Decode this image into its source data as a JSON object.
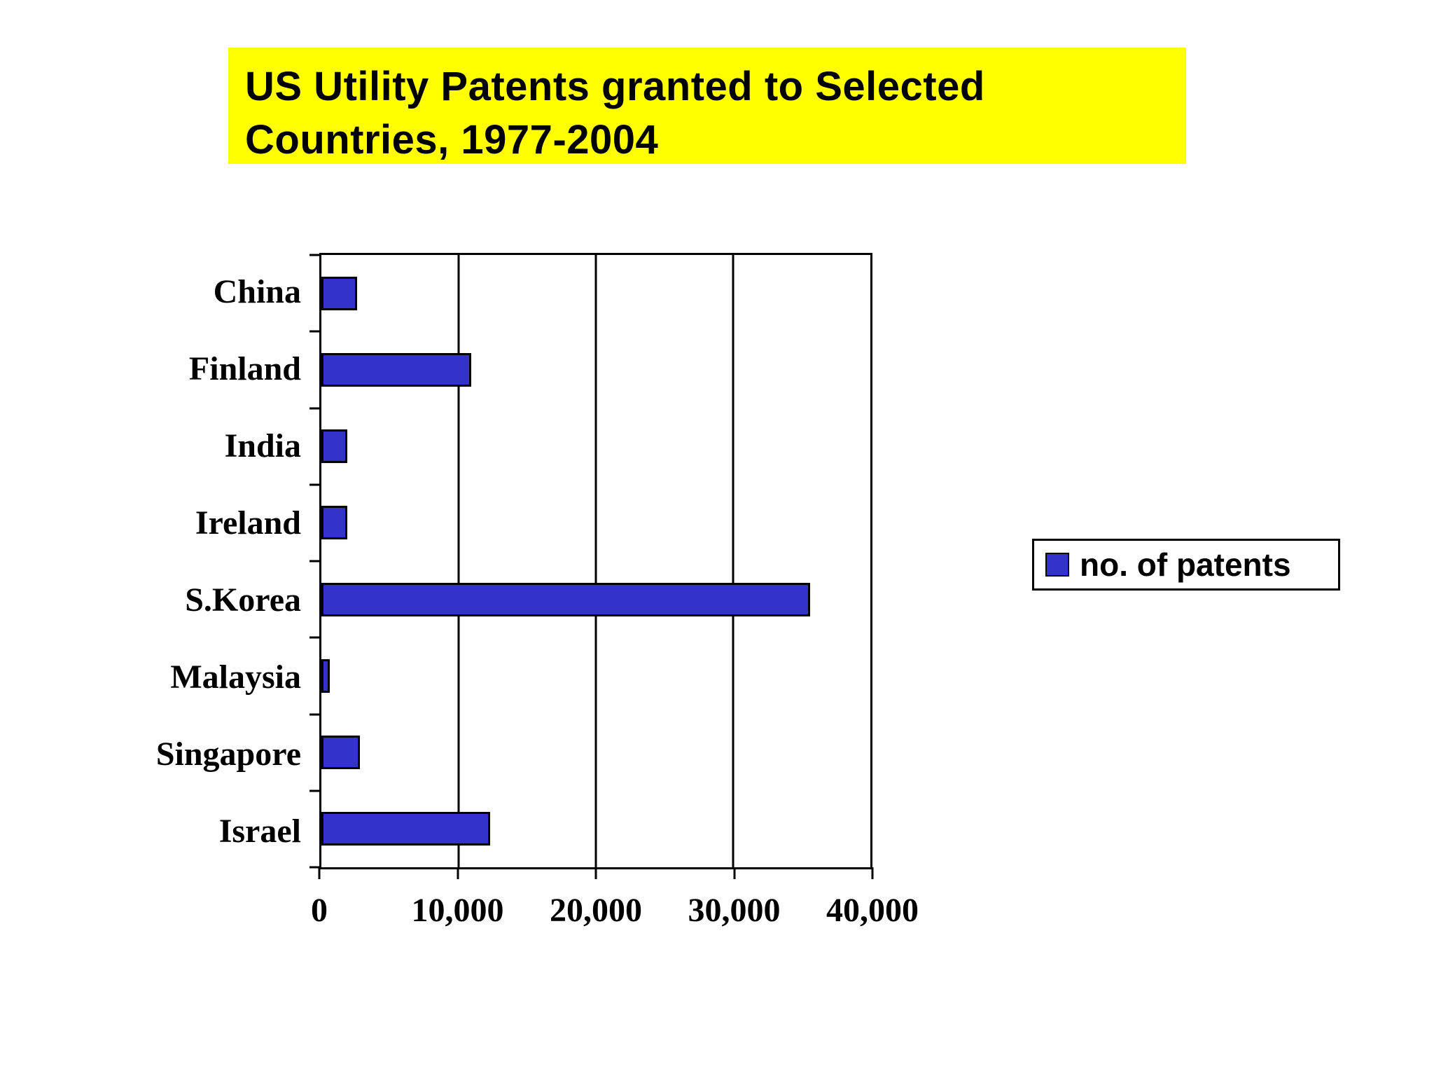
{
  "title": {
    "line1": "US Utility Patents granted to Selected",
    "line2": "Countries, 1977-2004"
  },
  "legend": {
    "label": "no. of patents"
  },
  "colors": {
    "bar_fill": "#3333CC",
    "bar_border": "#000000",
    "title_bg": "#FFFF00",
    "axis": "#000000",
    "background": "#FFFFFF"
  },
  "chart_data": {
    "type": "bar",
    "orientation": "horizontal",
    "title": "US Utility Patents granted to Selected Countries, 1977-2004",
    "categories": [
      "China",
      "Finland",
      "India",
      "Ireland",
      "S.Korea",
      "Malaysia",
      "Singapore",
      "Israel"
    ],
    "series": [
      {
        "name": "no. of patents",
        "values": [
          2600,
          10900,
          1900,
          1900,
          35600,
          600,
          2800,
          12300
        ]
      }
    ],
    "xlabel": "",
    "ylabel": "",
    "xlim": [
      0,
      40000
    ],
    "x_ticks": [
      "0",
      "10,000",
      "20,000",
      "30,000",
      "40,000"
    ],
    "x_tick_values": [
      0,
      10000,
      20000,
      30000,
      40000
    ],
    "grid": "vertical gridlines at interior x ticks",
    "legend_position": "right"
  }
}
